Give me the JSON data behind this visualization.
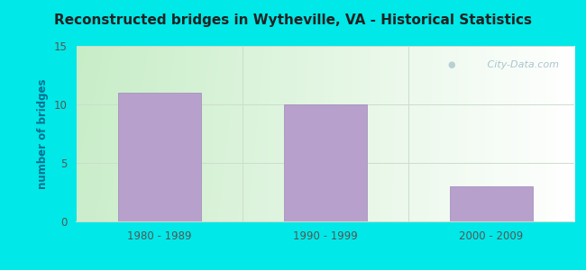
{
  "categories": [
    "1980 - 1989",
    "1990 - 1999",
    "2000 - 2009"
  ],
  "values": [
    11,
    10,
    3
  ],
  "bar_color": "#b8a0cc",
  "bar_edge_color": "#a088bb",
  "title": "Reconstructed bridges in Wytheville, VA - Historical Statistics",
  "ylabel": "number of bridges",
  "ylim": [
    0,
    15
  ],
  "yticks": [
    0,
    5,
    10,
    15
  ],
  "background_outer": "#00e8e8",
  "plot_bg_color_topleft": "#c8eec8",
  "plot_bg_color_topright": "#f0faf8",
  "plot_bg_color_bottomleft": "#c0ecc0",
  "plot_bg_color_bottomright": "#ffffff",
  "ylabel_color": "#007090",
  "title_color": "#222222",
  "watermark": " City-Data.com",
  "watermark_color": "#a0bfc8",
  "grid_color": "#ccddcc",
  "tick_color": "#555555",
  "xlim": [
    -0.5,
    2.5
  ]
}
